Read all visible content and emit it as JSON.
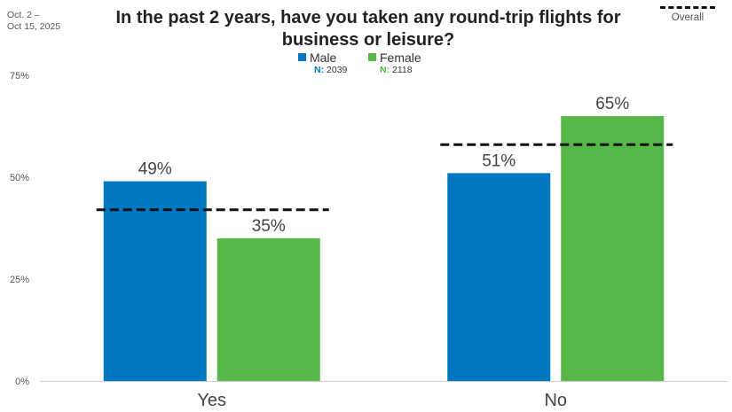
{
  "date_range": [
    "Oct. 2 –",
    "Oct 15, 2025"
  ],
  "overall_label": "Overall",
  "chart_data": {
    "type": "bar",
    "title": "In the past 2 years, have you taken any round-trip flights for business or leisure?",
    "categories": [
      "Yes",
      "No"
    ],
    "series": [
      {
        "name": "Male",
        "n_label": "N:",
        "n_value": "2039",
        "color": "#0077c0",
        "values": [
          49,
          51
        ],
        "labels": [
          "49%",
          "51%"
        ]
      },
      {
        "name": "Female",
        "n_label": "N:",
        "n_value": "2118",
        "color": "#55b848",
        "values": [
          35,
          65
        ],
        "labels": [
          "35%",
          "65%"
        ]
      }
    ],
    "overall": {
      "values": [
        42,
        58
      ]
    },
    "ylim": [
      0,
      75
    ],
    "yticks": [
      0,
      25,
      50,
      75
    ],
    "ytick_labels": [
      "0%",
      "25%",
      "50%",
      "75%"
    ],
    "legend_position": "top-center",
    "grid": false
  }
}
